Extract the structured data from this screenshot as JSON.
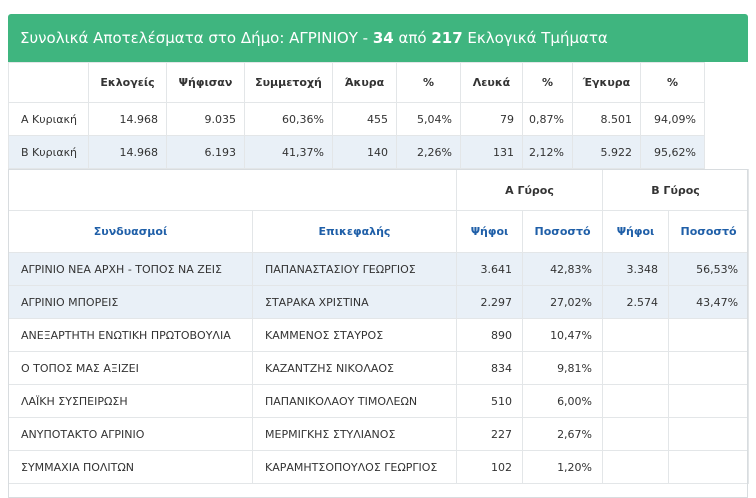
{
  "header": {
    "prefix": "Συνολικά Αποτελέσματα στο Δήμο: ΑΓΡΙΝΙΟΥ - ",
    "counted": "34",
    "middle": " από ",
    "total": "217",
    "suffix": " Εκλογικά Τμήματα"
  },
  "summary": {
    "columns": [
      "Εκλογείς",
      "Ψήφισαν",
      "Συμμετοχή",
      "Άκυρα",
      "%",
      "Λευκά",
      "%",
      "Έγκυρα",
      "%"
    ],
    "rows": [
      {
        "label": "Α Κυριακή",
        "values": [
          "14.968",
          "9.035",
          "60,36%",
          "455",
          "5,04%",
          "79",
          "0,87%",
          "8.501",
          "94,09%"
        ]
      },
      {
        "label": "Β Κυριακή",
        "values": [
          "14.968",
          "6.193",
          "41,37%",
          "140",
          "2,26%",
          "131",
          "2,12%",
          "5.922",
          "95,62%"
        ]
      }
    ]
  },
  "results": {
    "round_a": "Α Γύρος",
    "round_b": "Β Γύρος",
    "columns": {
      "party": "Συνδυασμοί",
      "leader": "Επικεφαλής",
      "votes_a": "Ψήφοι",
      "pct_a": "Ποσοστό",
      "votes_b": "Ψήφοι",
      "pct_b": "Ποσοστό"
    },
    "rows": [
      {
        "party": "ΑΓΡΙΝΙΟ ΝΕΑ ΑΡΧΗ - ΤΟΠΟΣ ΝΑ ΖΕΙΣ",
        "leader": "ΠΑΠΑΝΑΣΤΑΣΙΟΥ ΓΕΩΡΓΙΟΣ",
        "votes_a": "3.641",
        "pct_a": "42,83%",
        "votes_b": "3.348",
        "pct_b": "56,53%"
      },
      {
        "party": "ΑΓΡΙΝΙΟ ΜΠΟΡΕΙΣ",
        "leader": "ΣΤΑΡΑΚΑ ΧΡΙΣΤΙΝΑ",
        "votes_a": "2.297",
        "pct_a": "27,02%",
        "votes_b": "2.574",
        "pct_b": "43,47%"
      },
      {
        "party": "ΑΝΕΞΑΡΤΗΤΗ ΕΝΩΤΙΚΗ ΠΡΩΤΟΒΟΥΛΙΑ",
        "leader": "ΚΑΜΜΕΝΟΣ ΣΤΑΥΡΟΣ",
        "votes_a": "890",
        "pct_a": "10,47%",
        "votes_b": "",
        "pct_b": ""
      },
      {
        "party": "Ο ΤΟΠΟΣ ΜΑΣ ΑΞΙΖΕΙ",
        "leader": "ΚΑΖΑΝΤΖΗΣ ΝΙΚΟΛΑΟΣ",
        "votes_a": "834",
        "pct_a": "9,81%",
        "votes_b": "",
        "pct_b": ""
      },
      {
        "party": "ΛΑΪΚΗ ΣΥΣΠΕΙΡΩΣΗ",
        "leader": "ΠΑΠΑΝΙΚΟΛΑΟΥ ΤΙΜΟΛΕΩΝ",
        "votes_a": "510",
        "pct_a": "6,00%",
        "votes_b": "",
        "pct_b": ""
      },
      {
        "party": "ΑΝΥΠΟΤΑΚΤΟ ΑΓΡΙΝΙΟ",
        "leader": "ΜΕΡΜΙΓΚΗΣ ΣΤΥΛΙΑΝΟΣ",
        "votes_a": "227",
        "pct_a": "2,67%",
        "votes_b": "",
        "pct_b": ""
      },
      {
        "party": "ΣΥΜΜΑΧΙΑ ΠΟΛΙΤΩΝ",
        "leader": "ΚΑΡΑΜΗΤΣΟΠΟΥΛΟΣ ΓΕΩΡΓΙΟΣ",
        "votes_a": "102",
        "pct_a": "1,20%",
        "votes_b": "",
        "pct_b": ""
      }
    ]
  },
  "colors": {
    "header_bg": "#3fb57f",
    "link_blue": "#1f5fa8",
    "highlight_row": "#e9f0f7"
  }
}
